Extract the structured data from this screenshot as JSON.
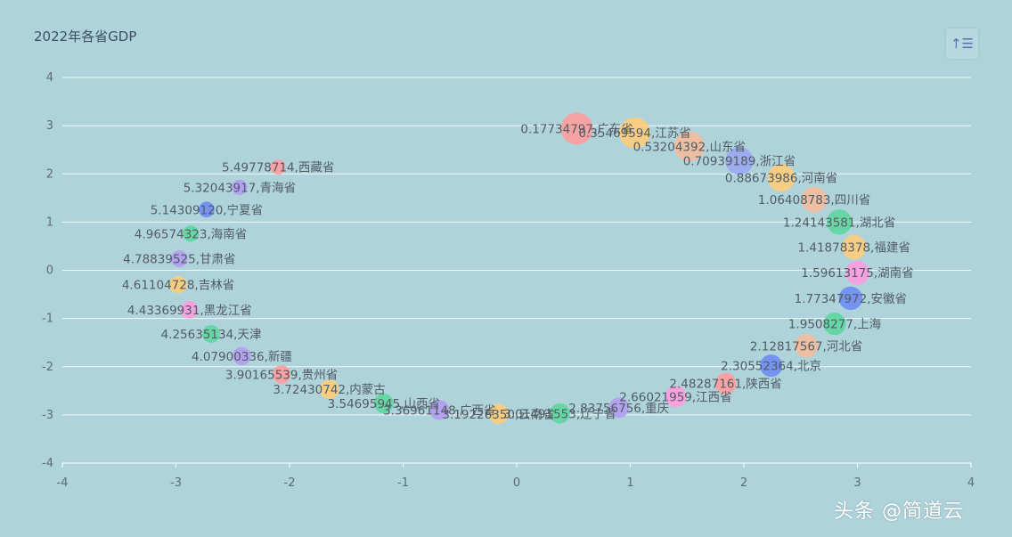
{
  "title": "2022年各省GDP",
  "toolbar_icon": "sort-ascending-icon",
  "toolbar_glyph": "↑☰",
  "watermark": "头条 @简道云",
  "chart_data": {
    "type": "scatter",
    "title": "2022年各省GDP",
    "xlim": [
      -4,
      4
    ],
    "ylim": [
      -4,
      4
    ],
    "xticks": [
      "-4",
      "-3",
      "-2",
      "-1",
      "0",
      "1",
      "2",
      "3",
      "4"
    ],
    "yticks": [
      "4",
      "3",
      "2",
      "1",
      "0",
      "-1",
      "-2",
      "-3",
      "-4"
    ],
    "grid": true,
    "colors": [
      "#ff9c9c",
      "#ffcc7a",
      "#f4bb9a",
      "#9aa7f0",
      "#ffcc7a",
      "#f4bb9a",
      "#5fd69e",
      "#ffcc7a",
      "#ff9be0",
      "#6f8cf2",
      "#5fd69e",
      "#f4bb9a",
      "#6f8cf2",
      "#ff9c9c",
      "#ff9be0",
      "#b39cf2",
      "#5fd69e",
      "#ffcc7a",
      "#b39cf2",
      "#5fd69e",
      "#ffcc7a",
      "#ff9c9c",
      "#b39cf2",
      "#5fd69e",
      "#ff9be0",
      "#ffcc7a",
      "#b39cf2",
      "#5fd69e",
      "#6f8cf2",
      "#b39cf2",
      "#ff9c9c"
    ],
    "points": [
      {
        "x": 0.53,
        "y": 2.94,
        "size": 1.0,
        "label": "0.17734797,广东省"
      },
      {
        "x": 1.04,
        "y": 2.85,
        "size": 0.95,
        "label": "0.35469594,江苏省"
      },
      {
        "x": 1.52,
        "y": 2.57,
        "size": 0.9,
        "label": "0.53204392,山东省"
      },
      {
        "x": 1.96,
        "y": 2.27,
        "size": 0.8,
        "label": "0.70939189,浙江省"
      },
      {
        "x": 2.33,
        "y": 1.92,
        "size": 0.78,
        "label": "0.88673986,河南省"
      },
      {
        "x": 2.62,
        "y": 1.47,
        "size": 0.7,
        "label": "1.06408783,四川省"
      },
      {
        "x": 2.84,
        "y": 1.0,
        "size": 0.68,
        "label": "1.24143581,湖北省"
      },
      {
        "x": 2.97,
        "y": 0.48,
        "size": 0.64,
        "label": "1.41878378,福建省"
      },
      {
        "x": 3.0,
        "y": -0.05,
        "size": 0.62,
        "label": "1.59613175,湖南省"
      },
      {
        "x": 2.94,
        "y": -0.58,
        "size": 0.6,
        "label": "1.77347972,安徽省"
      },
      {
        "x": 2.8,
        "y": -1.11,
        "size": 0.55,
        "label": "1.9508277,上海"
      },
      {
        "x": 2.55,
        "y": -1.57,
        "size": 0.58,
        "label": "2.12817567,河北省"
      },
      {
        "x": 2.24,
        "y": -1.98,
        "size": 0.55,
        "label": "2.30552364,北京"
      },
      {
        "x": 1.84,
        "y": -2.35,
        "size": 0.5,
        "label": "2.48287161,陕西省"
      },
      {
        "x": 1.4,
        "y": -2.62,
        "size": 0.5,
        "label": "2.66021959,江西省"
      },
      {
        "x": 0.9,
        "y": -2.85,
        "size": 0.45,
        "label": "2.83756756,重庆"
      },
      {
        "x": 0.38,
        "y": -2.97,
        "size": 0.45,
        "label": "3.01491553,辽宁省"
      },
      {
        "x": -0.16,
        "y": -2.98,
        "size": 0.45,
        "label": "3.19226350,云南省"
      },
      {
        "x": -0.68,
        "y": -2.9,
        "size": 0.42,
        "label": "3.36961148,广西省"
      },
      {
        "x": -1.17,
        "y": -2.76,
        "size": 0.42,
        "label": "3.54695945,山西省"
      },
      {
        "x": -1.65,
        "y": -2.47,
        "size": 0.4,
        "label": "3.72430742,内蒙古"
      },
      {
        "x": -2.07,
        "y": -2.16,
        "size": 0.36,
        "label": "3.90165539,贵州省"
      },
      {
        "x": -2.42,
        "y": -1.78,
        "size": 0.35,
        "label": "4.07900336,新疆"
      },
      {
        "x": -2.69,
        "y": -1.32,
        "size": 0.33,
        "label": "4.25635134,天津"
      },
      {
        "x": -2.88,
        "y": -0.82,
        "size": 0.32,
        "label": "4.43369931,黑龙江省"
      },
      {
        "x": -2.98,
        "y": -0.3,
        "size": 0.3,
        "label": "4.61104728,吉林省"
      },
      {
        "x": -2.97,
        "y": 0.24,
        "size": 0.28,
        "label": "4.78839525,甘肃省"
      },
      {
        "x": -2.87,
        "y": 0.76,
        "size": 0.26,
        "label": "4.96574323,海南省"
      },
      {
        "x": -2.73,
        "y": 1.26,
        "size": 0.24,
        "label": "5.14309120,宁夏省"
      },
      {
        "x": -2.44,
        "y": 1.72,
        "size": 0.22,
        "label": "5.32043917,青海省"
      },
      {
        "x": -2.1,
        "y": 2.14,
        "size": 0.2,
        "label": "5.49778714,西藏省"
      }
    ]
  }
}
